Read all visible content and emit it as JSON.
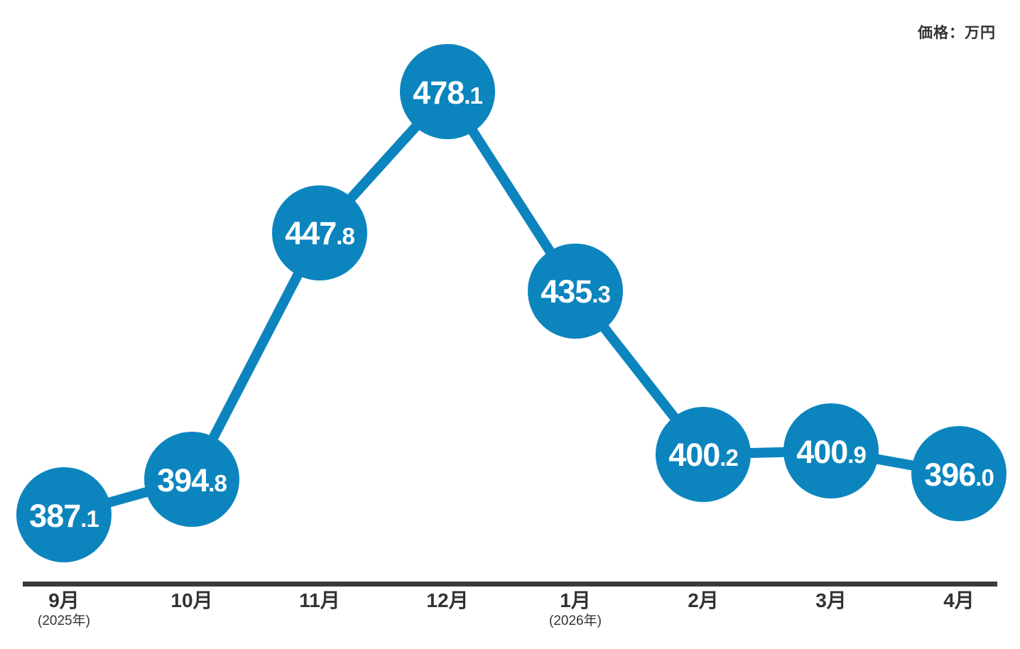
{
  "header": {
    "unit_label": "価格：万円"
  },
  "chart_data": {
    "type": "line",
    "title": "",
    "unit": "価格：万円",
    "xlabel": "",
    "ylabel": "価格（万円）",
    "categories": [
      "9月",
      "10月",
      "11月",
      "12月",
      "1月",
      "2月",
      "3月",
      "4月"
    ],
    "category_sublabels": [
      "(2025年)",
      "",
      "",
      "",
      "(2026年)",
      "",
      "",
      ""
    ],
    "values": [
      387.1,
      394.8,
      447.8,
      478.1,
      435.3,
      400.2,
      400.9,
      396.0
    ],
    "ylim": [
      380,
      485
    ],
    "grid": "off",
    "legend": "none",
    "accent_color": "#0C85BE",
    "axis_color": "#3A3A3A",
    "label_color": "#333333",
    "value_text_color": "#FFFFFF"
  }
}
